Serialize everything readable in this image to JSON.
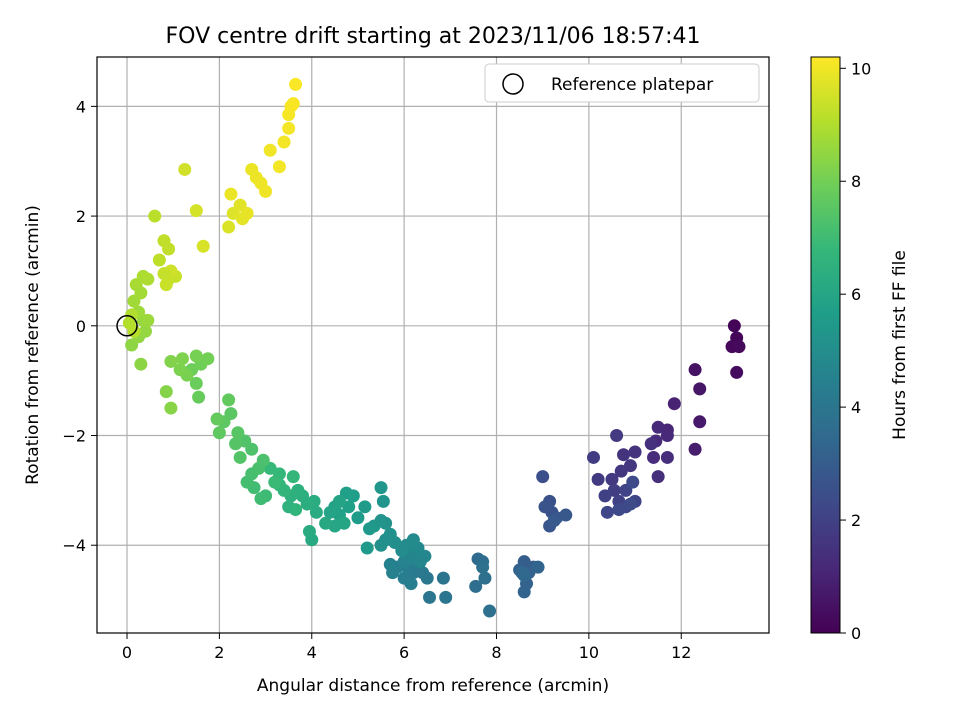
{
  "chart_data": {
    "type": "scatter",
    "title": "FOV centre drift starting at 2023/11/06 18:57:41",
    "xlabel": "Angular distance from reference (arcmin)",
    "ylabel": "Rotation from reference (arcmin)",
    "xlim": [
      -0.65,
      13.9
    ],
    "ylim": [
      -5.6,
      4.9
    ],
    "xticks": [
      0,
      2,
      4,
      6,
      8,
      10,
      12
    ],
    "yticks": [
      -4,
      -2,
      0,
      2,
      4
    ],
    "grid": true,
    "legend": {
      "position": "top-right",
      "entries": [
        "Reference platepar"
      ]
    },
    "reference_point": {
      "x": 0,
      "y": 0
    },
    "colorbar": {
      "label": "Hours from first FF file",
      "colormap": "viridis",
      "range": [
        0,
        10.2
      ],
      "ticks": [
        0,
        2,
        4,
        6,
        8,
        10
      ]
    },
    "colormap_stops": [
      "#440154",
      "#482878",
      "#3e4989",
      "#31688e",
      "#26828e",
      "#1f9e89",
      "#35b779",
      "#6ece58",
      "#b5de2b",
      "#fde725"
    ],
    "points": [
      [
        13.15,
        0.0,
        0.1
      ],
      [
        13.2,
        -0.22,
        0.15
      ],
      [
        13.1,
        -0.38,
        0.2
      ],
      [
        13.25,
        -0.38,
        0.25
      ],
      [
        13.2,
        -0.85,
        0.3
      ],
      [
        12.3,
        -0.8,
        0.5
      ],
      [
        12.4,
        -1.15,
        0.6
      ],
      [
        12.4,
        -1.75,
        0.7
      ],
      [
        12.3,
        -2.25,
        0.8
      ],
      [
        11.85,
        -1.42,
        1.0
      ],
      [
        11.7,
        -1.9,
        1.1
      ],
      [
        11.7,
        -2.0,
        1.15
      ],
      [
        11.5,
        -1.85,
        1.2
      ],
      [
        11.45,
        -2.1,
        1.25
      ],
      [
        11.4,
        -2.4,
        1.3
      ],
      [
        11.7,
        -2.4,
        1.35
      ],
      [
        11.5,
        -2.75,
        1.4
      ],
      [
        11.35,
        -2.15,
        1.45
      ],
      [
        11.0,
        -2.3,
        1.5
      ],
      [
        10.75,
        -2.35,
        1.55
      ],
      [
        10.9,
        -2.55,
        1.6
      ],
      [
        10.7,
        -2.65,
        1.65
      ],
      [
        10.5,
        -2.8,
        1.7
      ],
      [
        10.6,
        -2.0,
        1.75
      ],
      [
        10.2,
        -2.8,
        1.8
      ],
      [
        10.1,
        -2.4,
        1.85
      ],
      [
        10.55,
        -3.0,
        1.9
      ],
      [
        10.65,
        -3.2,
        1.95
      ],
      [
        10.35,
        -3.1,
        2.0
      ],
      [
        10.8,
        -3.0,
        2.05
      ],
      [
        11.0,
        -3.2,
        2.1
      ],
      [
        10.8,
        -3.3,
        2.15
      ],
      [
        10.4,
        -3.4,
        2.2
      ],
      [
        10.65,
        -3.35,
        2.25
      ],
      [
        10.95,
        -2.85,
        2.3
      ],
      [
        10.9,
        -3.25,
        2.35
      ],
      [
        9.0,
        -2.75,
        2.5
      ],
      [
        9.15,
        -3.2,
        2.55
      ],
      [
        9.2,
        -3.4,
        2.6
      ],
      [
        9.05,
        -3.3,
        2.65
      ],
      [
        9.3,
        -3.5,
        2.7
      ],
      [
        9.15,
        -3.65,
        2.75
      ],
      [
        9.5,
        -3.45,
        2.8
      ],
      [
        9.25,
        -3.55,
        2.85
      ],
      [
        8.8,
        -4.4,
        3.0
      ],
      [
        8.6,
        -4.3,
        3.05
      ],
      [
        8.5,
        -4.45,
        3.1
      ],
      [
        8.7,
        -4.5,
        3.15
      ],
      [
        8.65,
        -4.7,
        3.2
      ],
      [
        8.6,
        -4.85,
        3.25
      ],
      [
        8.9,
        -4.4,
        3.3
      ],
      [
        8.55,
        -4.5,
        3.35
      ],
      [
        8.6,
        -4.55,
        3.4
      ],
      [
        7.6,
        -4.25,
        3.55
      ],
      [
        7.7,
        -4.3,
        3.6
      ],
      [
        7.55,
        -4.75,
        3.65
      ],
      [
        7.75,
        -4.6,
        3.7
      ],
      [
        7.85,
        -5.2,
        3.75
      ],
      [
        7.7,
        -4.4,
        3.8
      ],
      [
        6.85,
        -4.6,
        3.9
      ],
      [
        6.9,
        -4.95,
        3.95
      ],
      [
        6.55,
        -4.95,
        4.0
      ],
      [
        6.5,
        -4.6,
        4.05
      ],
      [
        6.4,
        -4.5,
        4.1
      ],
      [
        6.3,
        -4.4,
        4.15
      ],
      [
        6.2,
        -4.5,
        4.2
      ],
      [
        6.1,
        -4.45,
        4.25
      ],
      [
        6.15,
        -4.7,
        4.3
      ],
      [
        6.0,
        -4.6,
        4.35
      ],
      [
        5.85,
        -4.4,
        4.4
      ],
      [
        5.75,
        -4.5,
        4.45
      ],
      [
        5.7,
        -4.35,
        4.5
      ],
      [
        6.0,
        -4.3,
        4.55
      ],
      [
        6.1,
        -4.25,
        4.6
      ],
      [
        6.2,
        -4.15,
        4.65
      ],
      [
        6.35,
        -4.3,
        4.7
      ],
      [
        6.45,
        -4.2,
        4.75
      ],
      [
        6.3,
        -4.05,
        4.8
      ],
      [
        6.2,
        -3.9,
        4.85
      ],
      [
        6.05,
        -4.0,
        4.9
      ],
      [
        5.95,
        -4.1,
        4.95
      ],
      [
        5.8,
        -3.95,
        5.0
      ],
      [
        5.6,
        -3.9,
        5.05
      ],
      [
        5.5,
        -4.0,
        5.1
      ],
      [
        5.7,
        -3.8,
        5.15
      ],
      [
        5.6,
        -3.6,
        5.2
      ],
      [
        5.5,
        -3.55,
        5.25
      ],
      [
        5.55,
        -3.2,
        5.3
      ],
      [
        5.5,
        -2.95,
        5.35
      ],
      [
        5.35,
        -3.65,
        5.4
      ],
      [
        5.25,
        -3.7,
        5.45
      ],
      [
        5.2,
        -4.05,
        5.5
      ],
      [
        5.15,
        -3.3,
        5.55
      ],
      [
        5.0,
        -3.5,
        5.6
      ],
      [
        4.9,
        -3.1,
        5.65
      ],
      [
        4.75,
        -3.05,
        5.7
      ],
      [
        4.8,
        -3.3,
        5.75
      ],
      [
        4.6,
        -3.45,
        5.8
      ],
      [
        4.5,
        -3.3,
        5.85
      ],
      [
        4.4,
        -3.4,
        5.9
      ],
      [
        4.6,
        -3.2,
        5.95
      ],
      [
        4.7,
        -3.6,
        6.0
      ],
      [
        4.5,
        -3.65,
        6.05
      ],
      [
        4.3,
        -3.6,
        6.1
      ],
      [
        4.0,
        -3.9,
        6.15
      ],
      [
        3.95,
        -3.75,
        6.2
      ],
      [
        4.1,
        -3.4,
        6.25
      ],
      [
        4.05,
        -3.2,
        6.3
      ],
      [
        3.9,
        -3.25,
        6.35
      ],
      [
        3.8,
        -3.1,
        6.4
      ],
      [
        3.7,
        -3.0,
        6.45
      ],
      [
        3.55,
        -3.1,
        6.5
      ],
      [
        3.5,
        -3.3,
        6.55
      ],
      [
        3.65,
        -3.35,
        6.6
      ],
      [
        3.4,
        -3.0,
        6.65
      ],
      [
        3.3,
        -2.9,
        6.7
      ],
      [
        3.6,
        -2.75,
        6.75
      ],
      [
        3.3,
        -2.7,
        6.8
      ],
      [
        3.1,
        -2.6,
        6.85
      ],
      [
        3.2,
        -2.85,
        6.9
      ],
      [
        3.0,
        -3.1,
        6.95
      ],
      [
        2.9,
        -3.15,
        7.0
      ],
      [
        2.75,
        -2.95,
        7.05
      ],
      [
        2.6,
        -2.85,
        7.1
      ],
      [
        2.7,
        -2.7,
        7.15
      ],
      [
        2.85,
        -2.6,
        7.2
      ],
      [
        2.95,
        -2.45,
        7.25
      ],
      [
        2.7,
        -2.25,
        7.3
      ],
      [
        2.55,
        -2.1,
        7.35
      ],
      [
        2.45,
        -2.4,
        7.4
      ],
      [
        2.35,
        -2.15,
        7.45
      ],
      [
        2.4,
        -1.95,
        7.5
      ],
      [
        2.25,
        -1.6,
        7.55
      ],
      [
        2.1,
        -1.75,
        7.6
      ],
      [
        2.0,
        -1.95,
        7.65
      ],
      [
        2.2,
        -1.35,
        7.7
      ],
      [
        1.95,
        -1.7,
        7.75
      ],
      [
        1.55,
        -1.3,
        7.8
      ],
      [
        1.5,
        -1.05,
        7.85
      ],
      [
        1.4,
        -0.8,
        7.9
      ],
      [
        1.6,
        -0.7,
        7.95
      ],
      [
        1.75,
        -0.6,
        8.0
      ],
      [
        1.5,
        -0.55,
        8.05
      ],
      [
        1.3,
        -0.9,
        8.1
      ],
      [
        1.15,
        -0.8,
        8.15
      ],
      [
        1.2,
        -0.6,
        8.2
      ],
      [
        0.95,
        -0.65,
        8.25
      ],
      [
        0.85,
        -1.2,
        8.3
      ],
      [
        0.95,
        -1.5,
        8.35
      ],
      [
        0.3,
        -0.7,
        8.4
      ],
      [
        0.1,
        -0.35,
        8.45
      ],
      [
        0.25,
        -0.2,
        8.5
      ],
      [
        0.4,
        -0.1,
        8.55
      ],
      [
        0.35,
        0.1,
        8.6
      ],
      [
        0.45,
        0.1,
        8.65
      ],
      [
        0.25,
        0.25,
        8.7
      ],
      [
        0.15,
        0.45,
        8.75
      ],
      [
        0.3,
        0.6,
        8.8
      ],
      [
        0.2,
        0.75,
        8.85
      ],
      [
        0.35,
        0.9,
        8.9
      ],
      [
        0.45,
        0.85,
        8.95
      ],
      [
        0.1,
        0.2,
        9.0
      ],
      [
        0.05,
        0.05,
        9.05
      ],
      [
        0.15,
        -0.1,
        9.1
      ],
      [
        0.6,
        2.0,
        9.15
      ],
      [
        0.7,
        1.2,
        9.2
      ],
      [
        0.8,
        1.55,
        9.25
      ],
      [
        0.9,
        0.85,
        9.3
      ],
      [
        1.05,
        0.9,
        9.35
      ],
      [
        0.85,
        0.75,
        9.4
      ],
      [
        0.95,
        1.0,
        9.45
      ],
      [
        1.25,
        2.85,
        9.5
      ],
      [
        1.5,
        2.1,
        9.55
      ],
      [
        1.65,
        1.45,
        9.6
      ],
      [
        2.2,
        1.8,
        9.65
      ],
      [
        2.3,
        2.05,
        9.7
      ],
      [
        2.45,
        2.2,
        9.75
      ],
      [
        2.5,
        1.95,
        9.8
      ],
      [
        2.6,
        2.05,
        9.85
      ],
      [
        2.25,
        2.4,
        9.9
      ],
      [
        2.7,
        2.85,
        9.92
      ],
      [
        2.8,
        2.7,
        9.94
      ],
      [
        2.9,
        2.6,
        9.96
      ],
      [
        3.0,
        2.45,
        9.98
      ],
      [
        3.1,
        3.2,
        10.0
      ],
      [
        3.3,
        2.9,
        10.02
      ],
      [
        3.4,
        3.35,
        10.04
      ],
      [
        3.5,
        3.6,
        10.06
      ],
      [
        3.5,
        3.85,
        10.08
      ],
      [
        3.55,
        4.0,
        10.1
      ],
      [
        3.6,
        4.05,
        10.12
      ],
      [
        3.65,
        4.4,
        10.15
      ],
      [
        0.8,
        0.95,
        9.3
      ],
      [
        0.9,
        1.4,
        9.25
      ]
    ]
  }
}
